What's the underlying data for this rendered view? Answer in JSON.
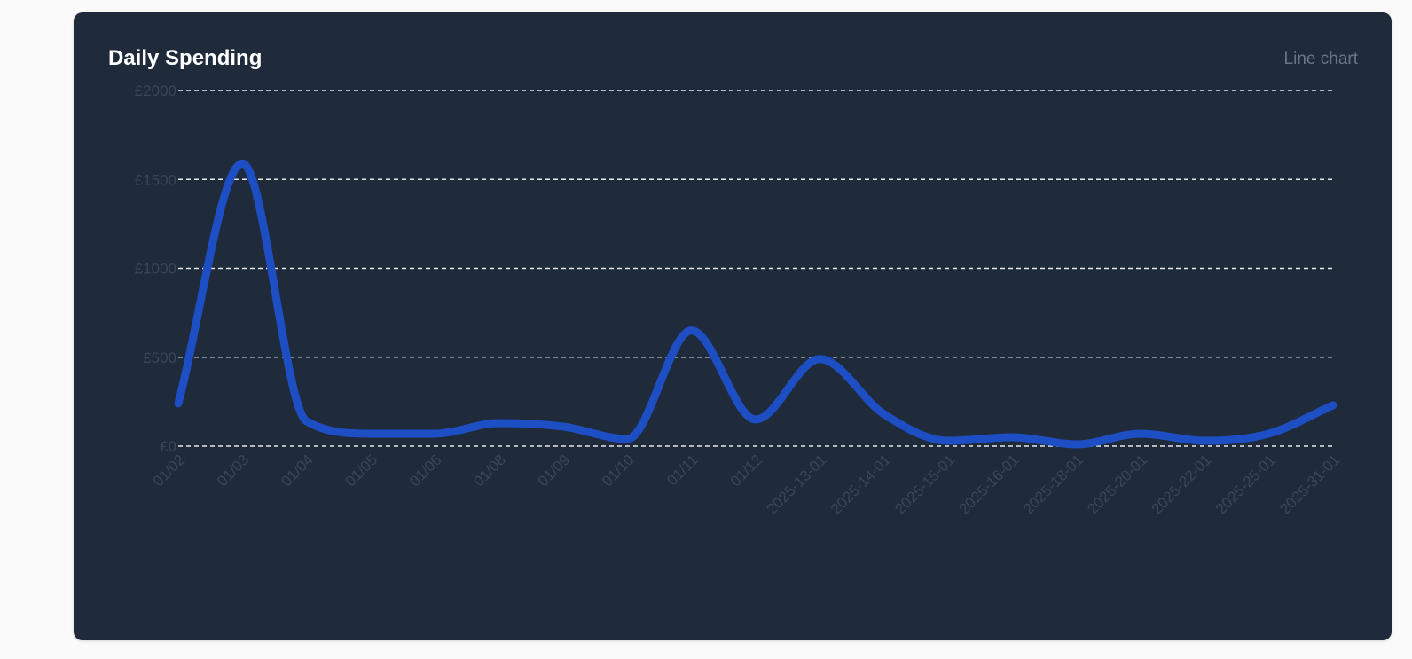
{
  "card": {
    "title": "Daily Spending",
    "subtitle": "Line chart"
  },
  "colors": {
    "background": "#fafafa",
    "card": "#1f2a3a",
    "line": "#1d4ec4",
    "grid": "#e6e8ec",
    "tick": "#3b4656"
  },
  "chart_data": {
    "type": "line",
    "title": "Daily Spending",
    "xlabel": "",
    "ylabel": "",
    "ylim": [
      0,
      2000
    ],
    "y_ticks": [
      0,
      500,
      1000,
      1500,
      2000
    ],
    "y_tick_labels": [
      "£0",
      "£500",
      "£1000",
      "£1500",
      "£2000"
    ],
    "grid": true,
    "legend": "none",
    "curve": "smooth",
    "categories": [
      "01/02",
      "01/03",
      "01/04",
      "01/05",
      "01/06",
      "01/08",
      "01/09",
      "01/10",
      "01/11",
      "01/12",
      "2025-13-01",
      "2025-14-01",
      "2025-15-01",
      "2025-16-01",
      "2025-18-01",
      "2025-20-01",
      "2025-22-01",
      "2025-25-01",
      "2025-31-01"
    ],
    "series": [
      {
        "values": [
          240,
          1590,
          140,
          70,
          70,
          130,
          110,
          40,
          650,
          150,
          490,
          180,
          30,
          50,
          10,
          70,
          30,
          70,
          230
        ]
      }
    ]
  }
}
